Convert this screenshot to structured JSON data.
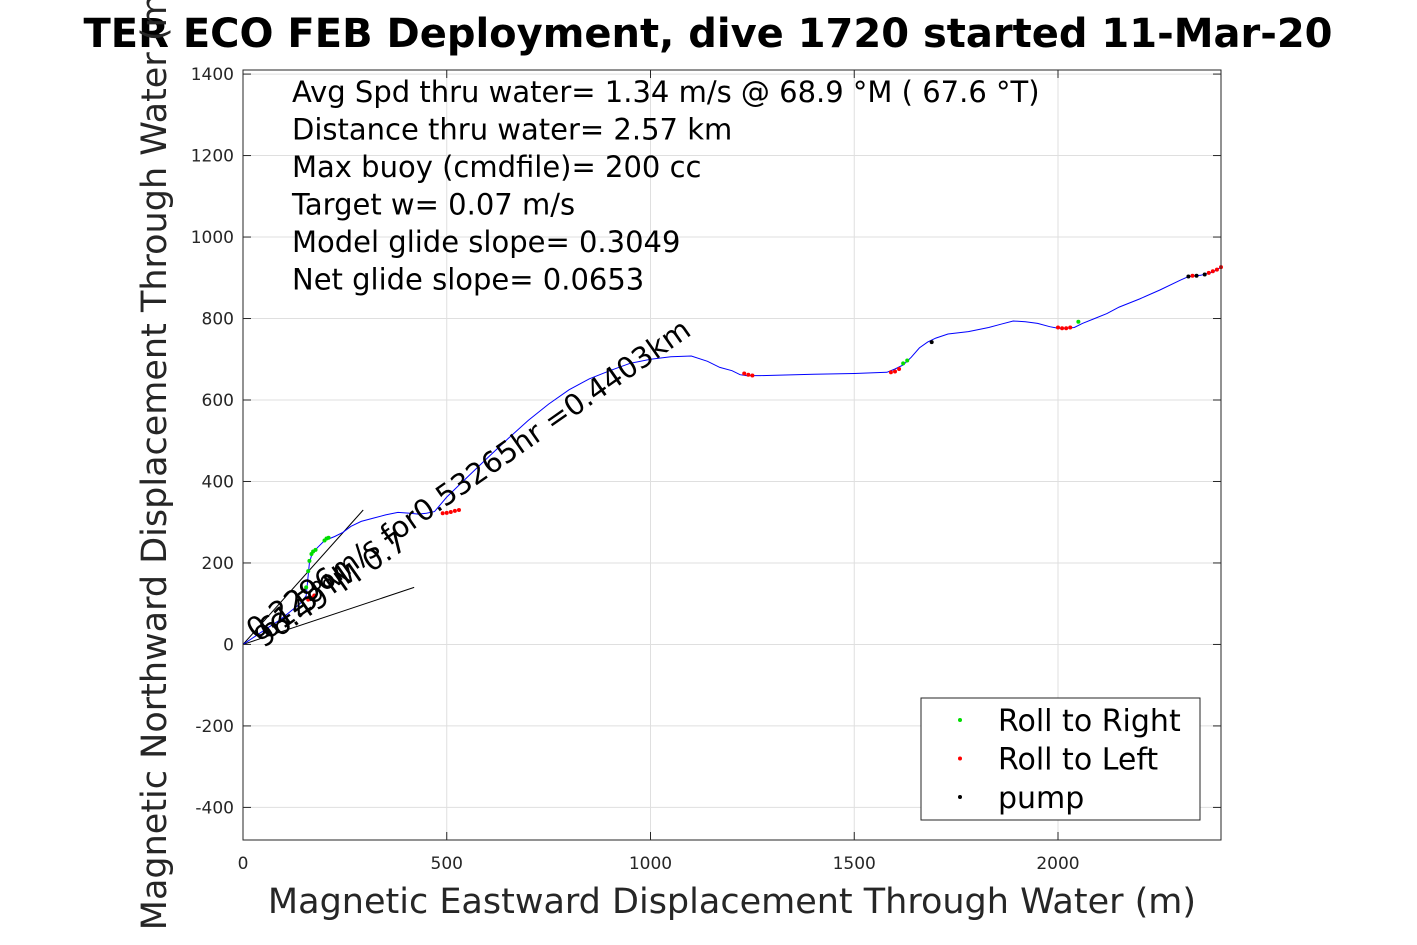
{
  "chart_data": {
    "type": "line",
    "title": "TER ECO FEB Deployment, dive 1720 started 11-Mar-20",
    "xlabel": "Magnetic Eastward Displacement Through Water (m)",
    "ylabel": "Magnetic Northward Displacement Through Water (m)",
    "xlim": [
      0,
      2400
    ],
    "ylim": [
      -480,
      1410
    ],
    "x_ticks": [
      0,
      500,
      1000,
      1500,
      2000
    ],
    "y_ticks": [
      -400,
      -200,
      0,
      200,
      400,
      600,
      800,
      1000,
      1200,
      1400
    ],
    "grid": true,
    "legend_position": "bottom-right",
    "colors": {
      "track": "#0000ff",
      "roll_right": "#00dd00",
      "roll_left": "#ff0000",
      "pump": "#000000",
      "current": "#000000"
    },
    "annotations": [
      "Avg Spd thru water=  1.34 m/s @  68.9 °M ( 67.6 °T)",
      "Distance thru water=  2.57 km",
      "Max buoy (cmdfile)= 200 cc",
      "Target w= 0.07 m/s",
      "Model glide slope= 0.3049",
      "Net glide slope= 0.0653"
    ],
    "rotated_labels": [
      {
        "text": "0.2296m/s for0.53265hr =0.4403km",
        "angle": 35,
        "x": 30,
        "y": 10
      },
      {
        "text": "61.5°M",
        "angle": 35,
        "x": 60,
        "y": 10
      },
      {
        "text": "96.49°M 0.7",
        "angle": 35,
        "x": 50,
        "y": -10
      }
    ],
    "series": [
      {
        "name": "track",
        "x": [
          0,
          30,
          60,
          90,
          115,
          140,
          155,
          160,
          163,
          170,
          185,
          200,
          225,
          245,
          265,
          290,
          320,
          350,
          380,
          410,
          430,
          450,
          470,
          500,
          550,
          600,
          650,
          700,
          750,
          800,
          850,
          900,
          950,
          1000,
          1050,
          1100,
          1140,
          1170,
          1200,
          1220,
          1235,
          1250,
          1270,
          1400,
          1500,
          1580,
          1600,
          1620,
          1640,
          1660,
          1680,
          1700,
          1730,
          1780,
          1830,
          1860,
          1890,
          1920,
          1950,
          1980,
          2000,
          2020,
          2040,
          2060,
          2090,
          2120,
          2150,
          2200,
          2250,
          2300,
          2320,
          2350,
          2380,
          2400
        ],
        "y": [
          0,
          20,
          40,
          60,
          80,
          100,
          120,
          170,
          200,
          225,
          240,
          255,
          265,
          275,
          290,
          302,
          310,
          318,
          324,
          322,
          320,
          322,
          326,
          362,
          410,
          458,
          505,
          550,
          590,
          625,
          652,
          672,
          690,
          700,
          706,
          708,
          695,
          680,
          672,
          662,
          660,
          660,
          660,
          663,
          665,
          668,
          676,
          686,
          705,
          728,
          742,
          752,
          762,
          768,
          778,
          786,
          794,
          792,
          788,
          780,
          776,
          776,
          778,
          788,
          800,
          812,
          828,
          848,
          870,
          894,
          903,
          906,
          914,
          926
        ]
      }
    ],
    "current_lines": [
      {
        "x": [
          0,
          295
        ],
        "y": [
          0,
          330
        ]
      },
      {
        "x": [
          0,
          420
        ],
        "y": [
          0,
          140
        ]
      }
    ],
    "points": {
      "Roll to Right": {
        "x": [
          155,
          160,
          163,
          168,
          172,
          178,
          200,
          205,
          210,
          1620,
          1630,
          2050
        ],
        "y": [
          140,
          180,
          205,
          222,
          228,
          232,
          255,
          260,
          262,
          690,
          697,
          792
        ]
      },
      "Roll to Left": {
        "x": [
          160,
          170,
          175,
          490,
          500,
          510,
          520,
          530,
          1230,
          1240,
          1250,
          1590,
          1600,
          1610,
          2000,
          2010,
          2020,
          2030,
          2330,
          2370,
          2380,
          2390,
          2400
        ],
        "y": [
          110,
          115,
          120,
          322,
          323,
          325,
          328,
          330,
          665,
          662,
          660,
          668,
          670,
          676,
          778,
          776,
          776,
          778,
          905,
          912,
          916,
          920,
          926
        ]
      },
      "pump": {
        "x": [
          1690,
          2320,
          2340,
          2360
        ],
        "y": [
          742,
          903,
          905,
          908
        ]
      }
    },
    "legend": [
      {
        "label": "Roll to Right",
        "color": "#00dd00"
      },
      {
        "label": "Roll to Left",
        "color": "#ff0000"
      },
      {
        "label": "pump",
        "color": "#000000"
      }
    ]
  }
}
